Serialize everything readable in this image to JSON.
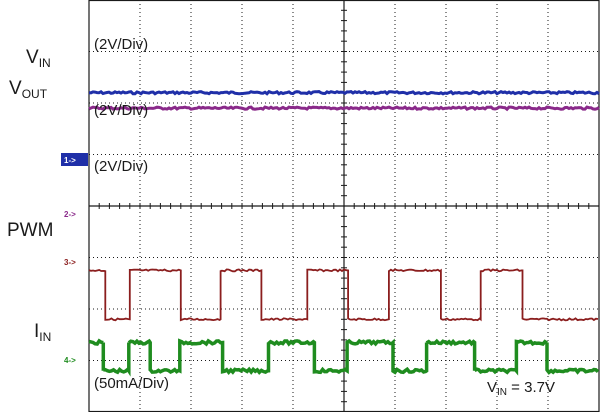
{
  "chart_data": {
    "type": "line",
    "title": "",
    "xlabel": "",
    "ylabel": "",
    "grid": true,
    "divisions": {
      "x": 10,
      "y": 8
    },
    "channel_labels": {
      "vin": {
        "main": "V",
        "sub": "IN"
      },
      "vout": {
        "main": "V",
        "sub": "OUT"
      },
      "pwm": "PWM",
      "iin": {
        "main": "I",
        "sub": "IN"
      }
    },
    "scale_labels": [
      "(2V/Div)",
      "(2V/Div)",
      "(2V/Div)",
      "(50mA/Div)"
    ],
    "annotation": {
      "main": "V",
      "sub": "IN",
      "rest": " = 3.7V"
    },
    "markers": [
      "1->",
      "2->",
      "3->",
      "4->"
    ],
    "series": [
      {
        "key": "vin",
        "color": "#1f2fa8",
        "shape": "flat",
        "level": 6.2
      },
      {
        "key": "vout",
        "color": "#8a2a8a",
        "shape": "flat",
        "level": 5.9
      },
      {
        "key": "pwm",
        "color": "#8b1e1e",
        "shape": "square",
        "high": 2.75,
        "low": 1.8,
        "edges_div": [
          0.32,
          0.8,
          1.8,
          2.58,
          3.38,
          4.28,
          5.08,
          5.88,
          6.9,
          7.68,
          8.5
        ]
      },
      {
        "key": "iin",
        "color": "#1f8c1f",
        "shape": "square",
        "high": 1.35,
        "low": 0.8,
        "edges_div": [
          0.28,
          0.78,
          1.2,
          1.78,
          2.62,
          3.52,
          4.42,
          5.06,
          5.96,
          6.62,
          7.56,
          8.38,
          8.98
        ]
      }
    ],
    "colors": {
      "background": "#ffffff",
      "grid": "#1a1a1a",
      "marker_vin": "#1f2fa8"
    }
  }
}
